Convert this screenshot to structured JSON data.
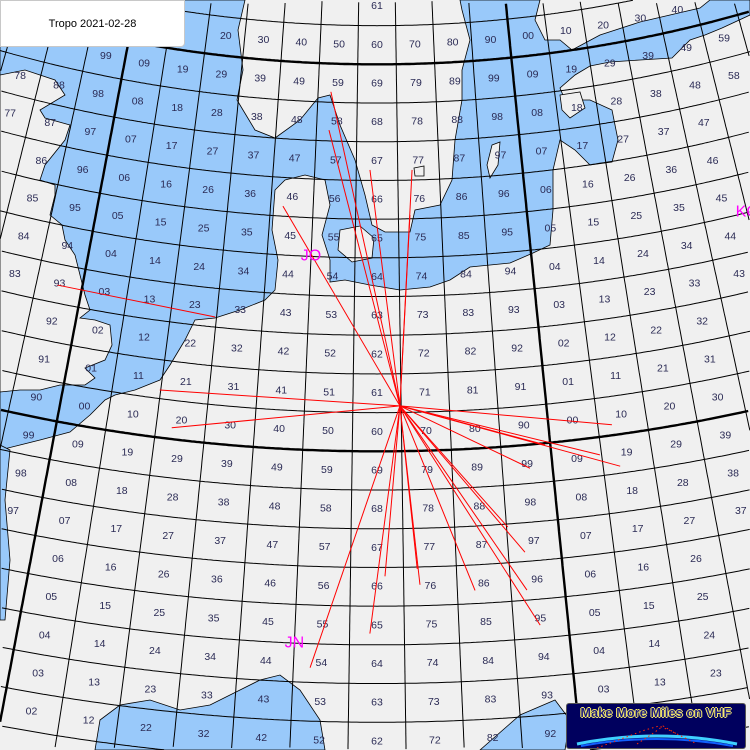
{
  "title": "Tropo 2021-02-28",
  "logo_text": "Make More Miles on VHF",
  "colors": {
    "land": "#f0f0f0",
    "water": "#99c9fa",
    "grid": "#000000",
    "path": "#ff0000",
    "field_label": "#ff00ff",
    "square_label": "#2b2b55",
    "logo_bg": "#00005e"
  },
  "grid": {
    "square_lon_deg": 2,
    "square_lat_deg": 1,
    "field_lon_deg": 20,
    "field_lat_deg": 10,
    "lon_range": [
      -12,
      42
    ],
    "lat_range": [
      38,
      68
    ]
  },
  "field_labels": [
    {
      "text": "JO",
      "lon": 10,
      "lat": 55
    },
    {
      "text": "JN",
      "lon": 10,
      "lat": 45
    },
    {
      "text": "KO",
      "lon": 30,
      "lat": 55
    }
  ],
  "paths": {
    "center": {
      "lat": 51.17,
      "lon": 13.95
    },
    "radial_endpoints": [
      {
        "lat": 59.27,
        "lon": 10.65
      },
      {
        "lat": 58.28,
        "lon": 10.62
      },
      {
        "lat": 57.27,
        "lon": 12.66
      },
      {
        "lat": 57.26,
        "lon": 14.69
      },
      {
        "lat": 56.1,
        "lon": 14.54
      },
      {
        "lat": 56.26,
        "lon": 8.58
      },
      {
        "lat": 51.22,
        "lon": 3.96
      },
      {
        "lat": 50.29,
        "lon": 4.64
      },
      {
        "lat": 50.27,
        "lon": 22.57
      },
      {
        "lat": 49.18,
        "lon": 22.67
      },
      {
        "lat": 49.96,
        "lon": 19.78
      },
      {
        "lat": 49.39,
        "lon": 19.1
      },
      {
        "lat": 49.54,
        "lon": 21.93
      },
      {
        "lat": 47.24,
        "lon": 18.63
      },
      {
        "lat": 46.26,
        "lon": 18.59
      },
      {
        "lat": 45.33,
        "lon": 18.97
      },
      {
        "lat": 47.92,
        "lon": 18.05
      },
      {
        "lat": 46.34,
        "lon": 16.66
      },
      {
        "lat": 46.54,
        "lon": 14.61
      },
      {
        "lat": 45.29,
        "lon": 12.74
      },
      {
        "lat": 44.38,
        "lon": 10.6
      },
      {
        "lat": 46.77,
        "lon": 13.3
      },
      {
        "lat": 46.95,
        "lon": 14.52
      }
    ],
    "other_segments": [
      {
        "from": {
          "lat": 53.46,
          "lon": -1.08
        },
        "to": {
          "lat": 53.26,
          "lon": 5.94
        }
      }
    ]
  }
}
